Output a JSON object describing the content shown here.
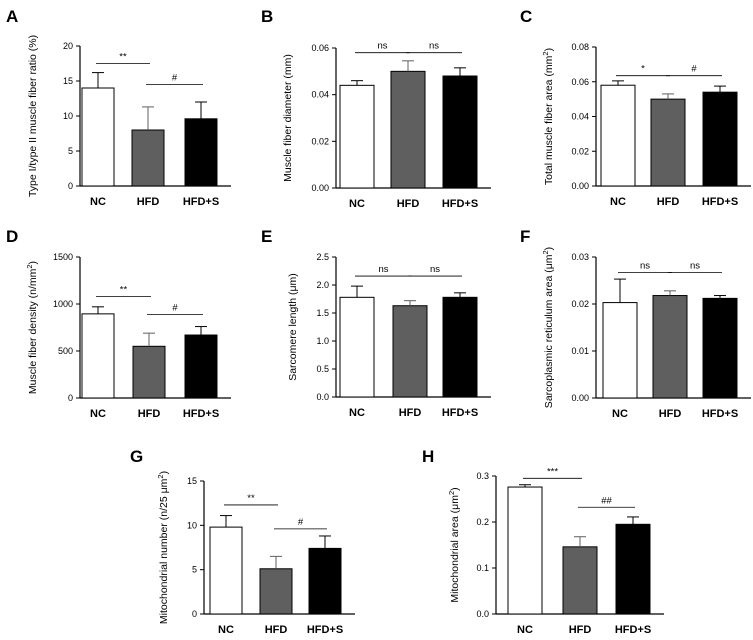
{
  "colors": {
    "NC": "#ffffff",
    "HFD": "#5f5f5f",
    "HFD+S": "#000000",
    "axis": "#000000"
  },
  "chart_data": [
    {
      "panel": "A",
      "type": "bar",
      "categories": [
        "NC",
        "HFD",
        "HFD+S"
      ],
      "values": [
        14.0,
        8.0,
        9.6
      ],
      "errors": [
        2.2,
        3.3,
        2.4
      ],
      "ylabel": "Type I/type II muscle fiber ratio (%)",
      "ylabel_sup": "",
      "ylabel_end": "",
      "ylim": [
        0,
        20
      ],
      "yticks": [
        0,
        5,
        10,
        15,
        20
      ],
      "ytick_labels": [
        "0",
        "5",
        "10",
        "15",
        "20"
      ],
      "annotations": [
        {
          "from": 0,
          "to": 1,
          "y": 17.5,
          "text": "**"
        },
        {
          "from": 1,
          "to": 2,
          "y": 14.5,
          "text": "#"
        }
      ]
    },
    {
      "panel": "B",
      "type": "bar",
      "categories": [
        "NC",
        "HFD",
        "HFD+S"
      ],
      "values": [
        0.044,
        0.05,
        0.048
      ],
      "errors": [
        0.002,
        0.0045,
        0.0035
      ],
      "ylabel": "Muscle fiber diameter (mm)",
      "ylabel_sup": "",
      "ylabel_end": "",
      "ylim": [
        0,
        0.06
      ],
      "yticks": [
        0,
        0.02,
        0.04,
        0.06
      ],
      "ytick_labels": [
        "0.00",
        "0.02",
        "0.04",
        "0.06"
      ],
      "annotations": [
        {
          "from": 0,
          "to": 1,
          "y": 0.058,
          "text": "ns"
        },
        {
          "from": 1,
          "to": 2,
          "y": 0.058,
          "text": "ns"
        }
      ]
    },
    {
      "panel": "C",
      "type": "bar",
      "categories": [
        "NC",
        "HFD",
        "HFD+S"
      ],
      "values": [
        0.058,
        0.05,
        0.054
      ],
      "errors": [
        0.0025,
        0.003,
        0.0035
      ],
      "ylabel": "Total muscle fiber area (mm",
      "ylabel_sup": "2",
      "ylabel_end": ")",
      "ylim": [
        0,
        0.08
      ],
      "yticks": [
        0,
        0.02,
        0.04,
        0.06,
        0.08
      ],
      "ytick_labels": [
        "0.00",
        "0.02",
        "0.04",
        "0.06",
        "0.08"
      ],
      "annotations": [
        {
          "from": 0,
          "to": 1,
          "y": 0.0635,
          "text": "*"
        },
        {
          "from": 1,
          "to": 2,
          "y": 0.0635,
          "text": "#"
        }
      ]
    },
    {
      "panel": "D",
      "type": "bar",
      "categories": [
        "NC",
        "HFD",
        "HFD+S"
      ],
      "values": [
        895,
        550,
        670
      ],
      "errors": [
        75,
        140,
        90
      ],
      "ylabel": "Muscle fiber density (n/mm",
      "ylabel_sup": "2",
      "ylabel_end": ")",
      "ylim": [
        0,
        1500
      ],
      "yticks": [
        0,
        500,
        1000,
        1500
      ],
      "ytick_labels": [
        "0",
        "500",
        "1000",
        "1500"
      ],
      "annotations": [
        {
          "from": 0,
          "to": 1,
          "y": 1080,
          "text": "**"
        },
        {
          "from": 1,
          "to": 2,
          "y": 890,
          "text": "#"
        }
      ]
    },
    {
      "panel": "E",
      "type": "bar",
      "categories": [
        "NC",
        "HFD",
        "HFD+S"
      ],
      "values": [
        1.78,
        1.63,
        1.78
      ],
      "errors": [
        0.2,
        0.09,
        0.08
      ],
      "ylabel": "Sarcomere length (μm)",
      "ylabel_sup": "",
      "ylabel_end": "",
      "ylim": [
        0,
        2.5
      ],
      "yticks": [
        0,
        0.5,
        1.0,
        1.5,
        2.0,
        2.5
      ],
      "ytick_labels": [
        "0.0",
        "0.5",
        "1.0",
        "1.5",
        "2.0",
        "2.5"
      ],
      "annotations": [
        {
          "from": 0,
          "to": 1,
          "y": 2.16,
          "text": "ns"
        },
        {
          "from": 1,
          "to": 2,
          "y": 2.16,
          "text": "ns"
        }
      ]
    },
    {
      "panel": "F",
      "type": "bar",
      "categories": [
        "NC",
        "HFD",
        "HFD+S"
      ],
      "values": [
        0.0203,
        0.0218,
        0.0212
      ],
      "errors": [
        0.005,
        0.001,
        0.0006
      ],
      "ylabel": "Sarcoplasmic reticulum area (μm",
      "ylabel_sup": "2",
      "ylabel_end": ")",
      "ylim": [
        0,
        0.03
      ],
      "yticks": [
        0,
        0.01,
        0.02,
        0.03
      ],
      "ytick_labels": [
        "0.00",
        "0.01",
        "0.02",
        "0.03"
      ],
      "annotations": [
        {
          "from": 0,
          "to": 1,
          "y": 0.0267,
          "text": "ns"
        },
        {
          "from": 1,
          "to": 2,
          "y": 0.0267,
          "text": "ns"
        }
      ]
    },
    {
      "panel": "G",
      "type": "bar",
      "categories": [
        "NC",
        "HFD",
        "HFD+S"
      ],
      "values": [
        9.8,
        5.1,
        7.4
      ],
      "errors": [
        1.3,
        1.4,
        1.4
      ],
      "ylabel": "Mitochondrial number (n/25 μm",
      "ylabel_sup": "2",
      "ylabel_end": ")",
      "ylim": [
        0,
        15
      ],
      "yticks": [
        0,
        5,
        10,
        15
      ],
      "ytick_labels": [
        "0",
        "5",
        "10",
        "15"
      ],
      "annotations": [
        {
          "from": 0,
          "to": 1,
          "y": 12.3,
          "text": "**"
        },
        {
          "from": 1,
          "to": 2,
          "y": 9.6,
          "text": "#"
        }
      ]
    },
    {
      "panel": "H",
      "type": "bar",
      "categories": [
        "NC",
        "HFD",
        "HFD+S"
      ],
      "values": [
        0.276,
        0.146,
        0.195
      ],
      "errors": [
        0.005,
        0.022,
        0.016
      ],
      "ylabel": "Mitochondrial area (μm",
      "ylabel_sup": "2",
      "ylabel_end": ")",
      "ylim": [
        0,
        0.3
      ],
      "yticks": [
        0,
        0.1,
        0.2,
        0.3
      ],
      "ytick_labels": [
        "0.0",
        "0.1",
        "0.2",
        "0.3"
      ],
      "annotations": [
        {
          "from": 0,
          "to": 1,
          "y": 0.295,
          "text": "***"
        },
        {
          "from": 1,
          "to": 2,
          "y": 0.232,
          "text": "##"
        }
      ]
    }
  ]
}
